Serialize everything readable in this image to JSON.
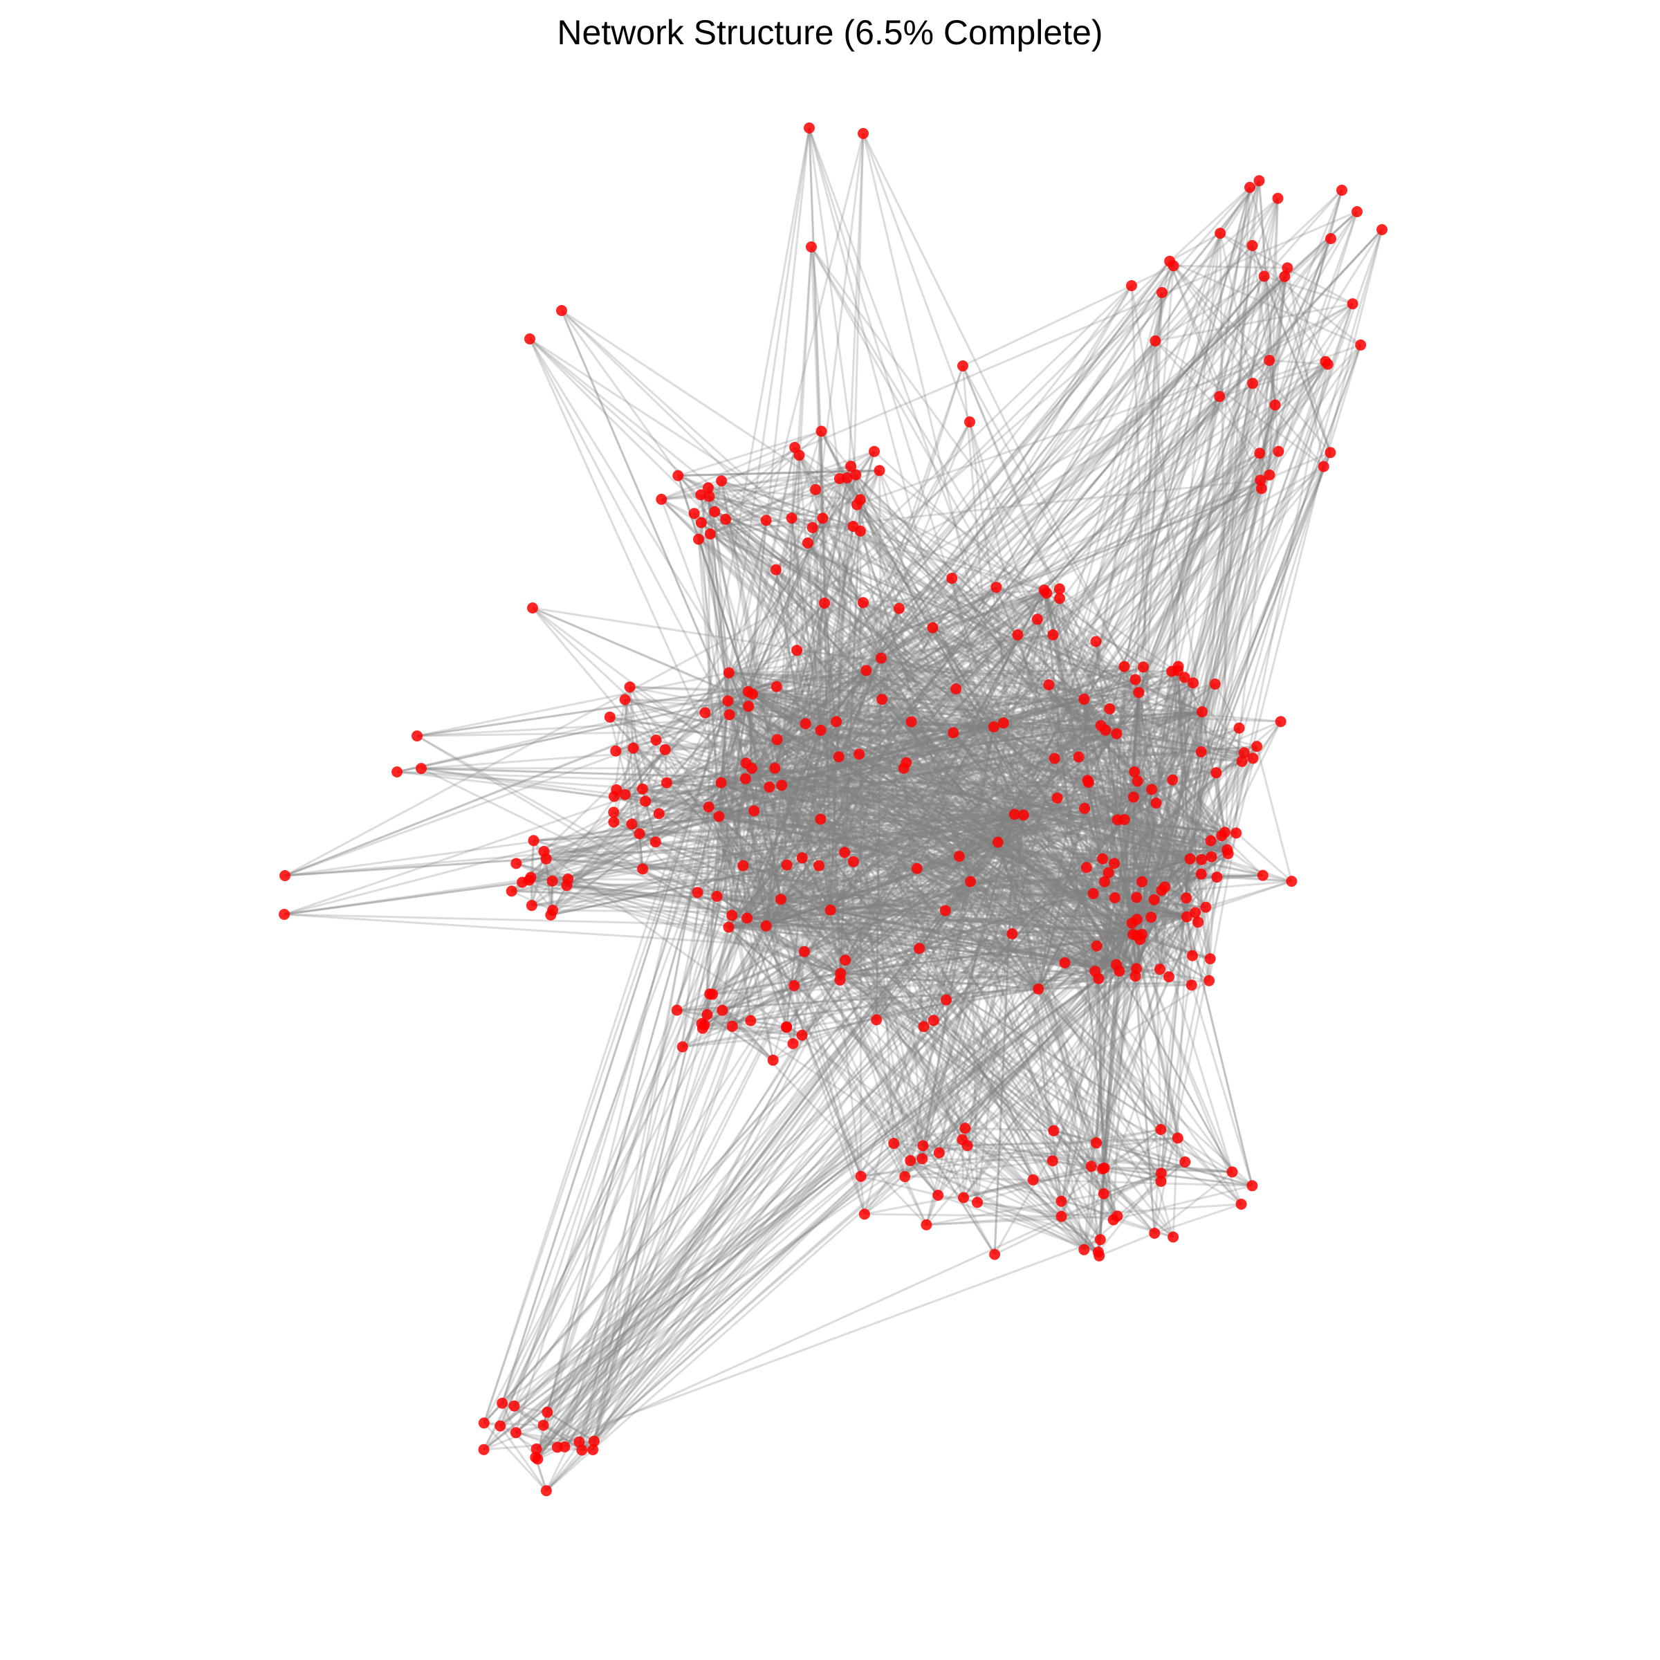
{
  "figure": {
    "title": "Network Structure (6.5% Complete)"
  },
  "chart_data": {
    "type": "network",
    "title": "Network Structure (6.5% Complete)",
    "node_count": 360,
    "edge_color": "#808080",
    "node_color": "#ff0000",
    "background_color": "#ffffff"
  }
}
